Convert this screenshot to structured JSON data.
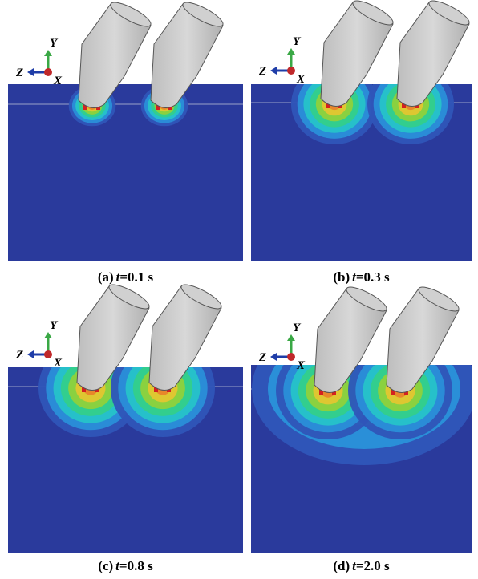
{
  "panels": [
    {
      "caption": {
        "label": "(a)",
        "var": "t",
        "value": "=0.1 s"
      },
      "axes": {
        "y": "Y",
        "z": "Z",
        "x": "X"
      }
    },
    {
      "caption": {
        "label": "(b)",
        "var": "t",
        "value": "=0.3 s"
      },
      "axes": {
        "y": "Y",
        "z": "Z",
        "x": "X"
      }
    },
    {
      "caption": {
        "label": "(c)",
        "var": "t",
        "value": "=0.8 s"
      },
      "axes": {
        "y": "Y",
        "z": "Z",
        "x": "X"
      }
    },
    {
      "caption": {
        "label": "(d)",
        "var": "t",
        "value": "=2.0 s"
      },
      "axes": {
        "y": "Y",
        "z": "Z",
        "x": "X"
      }
    }
  ]
}
